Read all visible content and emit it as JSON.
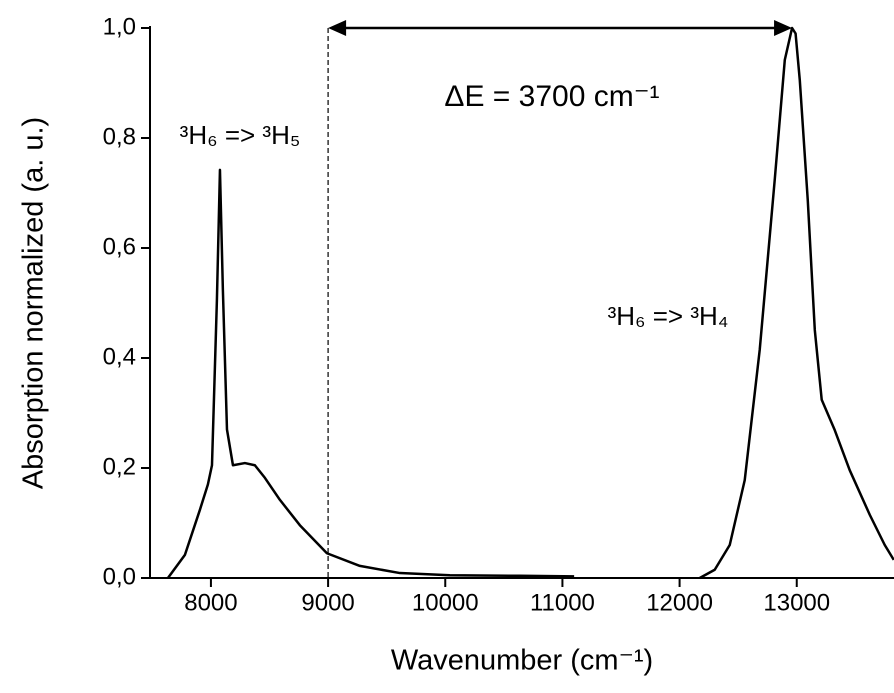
{
  "chart_data": {
    "type": "line",
    "xlabel": "Wavenumber (cm⁻¹)",
    "ylabel": "Absorption normalized (a. u.)",
    "annotations": [
      "³H₆ => ³H₅",
      "³H₆ => ³H₄",
      "ΔE = 3700 cm⁻¹"
    ],
    "marker_x": 9000,
    "xlim": [
      7480,
      13830
    ],
    "ylim": [
      0,
      1.0
    ],
    "xticks": [
      8000,
      9000,
      10000,
      11000,
      12000,
      13000
    ],
    "yticks": [
      {
        "value": 0,
        "label": "0,0"
      },
      {
        "value": 0.2,
        "label": "0,2"
      },
      {
        "value": 0.4,
        "label": "0,4"
      },
      {
        "value": 0.6,
        "label": "0,6"
      },
      {
        "value": 0.8,
        "label": "0,8"
      },
      {
        "value": 1.0,
        "label": "1,0"
      }
    ],
    "x": [
      7633,
      7778,
      7906,
      7974,
      8009,
      8051,
      8077,
      8102,
      8137,
      8188,
      8290,
      8375,
      8461,
      8589,
      8759,
      8990,
      9271,
      9613,
      10039,
      10637,
      11100,
      11600,
      12172,
      12300,
      12428,
      12556,
      12684,
      12812,
      12898,
      12960,
      12990,
      13026,
      13094,
      13154,
      13213,
      13324,
      13452,
      13623,
      13751,
      13828
    ],
    "series": [
      {
        "color": "#000000",
        "values": [
          0,
          0.042,
          0.124,
          0.17,
          0.205,
          0.505,
          0.742,
          0.524,
          0.27,
          0.205,
          0.209,
          0.205,
          0.182,
          0.142,
          0.096,
          0.045,
          0.022,
          0.009,
          0.005,
          0.004,
          0.003,
          null,
          0,
          0.015,
          0.06,
          0.178,
          0.415,
          0.724,
          0.942,
          1.0,
          0.99,
          0.905,
          0.687,
          0.451,
          0.324,
          0.269,
          0.196,
          0.115,
          0.06,
          0.033
        ]
      }
    ]
  }
}
